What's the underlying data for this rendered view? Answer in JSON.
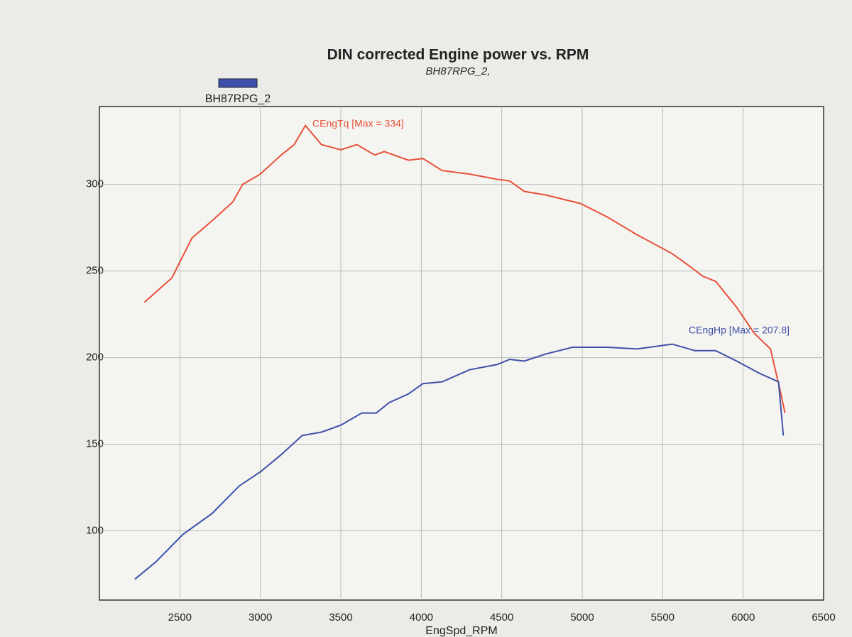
{
  "chart_data": {
    "type": "line",
    "title": "DIN corrected Engine power vs. RPM",
    "subtitle": "BH87RPG_2,",
    "legend_label": "BH87RPG_2",
    "legend_color": "#3f4fa8",
    "x_label": "EngSpd_RPM",
    "annotations": [
      "CEngTq [Max = 334]",
      "CEngHp [Max = 207.8]"
    ],
    "xlim": [
      2000,
      6500
    ],
    "xticks": [
      2500,
      3000,
      3500,
      4000,
      4500,
      5000,
      5500,
      6000,
      6500
    ],
    "ylim": [
      60,
      345
    ],
    "yticks": [
      100,
      150,
      200,
      250,
      300
    ],
    "grid": true,
    "series": [
      {
        "name": "CEngTq",
        "color": "#e8503a",
        "x": [
          2280,
          2450,
          2575,
          2700,
          2830,
          2890,
          3000,
          3130,
          3210,
          3280,
          3380,
          3500,
          3600,
          3710,
          3770,
          3920,
          4010,
          4130,
          4300,
          4470,
          4550,
          4640,
          4770,
          4990,
          5160,
          5340,
          5560,
          5650,
          5750,
          5830,
          5960,
          6070,
          6170,
          6230,
          6260
        ],
        "values": [
          232,
          246,
          269,
          279,
          290,
          300,
          306,
          317,
          323,
          334,
          323,
          320,
          323,
          317,
          319,
          314,
          315,
          308,
          306,
          303,
          302,
          296,
          294,
          289,
          281,
          271,
          260,
          254,
          247,
          244,
          229,
          214,
          205,
          181,
          168
        ]
      },
      {
        "name": "CEngHp",
        "color": "#3f4fa8",
        "x": [
          2220,
          2350,
          2520,
          2700,
          2870,
          3000,
          3130,
          3260,
          3380,
          3500,
          3630,
          3720,
          3800,
          3920,
          4010,
          4130,
          4300,
          4470,
          4550,
          4640,
          4770,
          4940,
          5160,
          5340,
          5560,
          5700,
          5830,
          5960,
          6100,
          6220,
          6250
        ],
        "values": [
          72,
          82,
          98,
          110,
          126,
          134,
          144,
          155,
          157,
          161,
          168,
          168,
          174,
          179,
          185,
          186,
          193,
          196,
          199,
          198,
          202,
          206,
          206,
          205,
          207.8,
          204,
          204,
          198,
          191,
          186,
          155
        ]
      }
    ]
  }
}
